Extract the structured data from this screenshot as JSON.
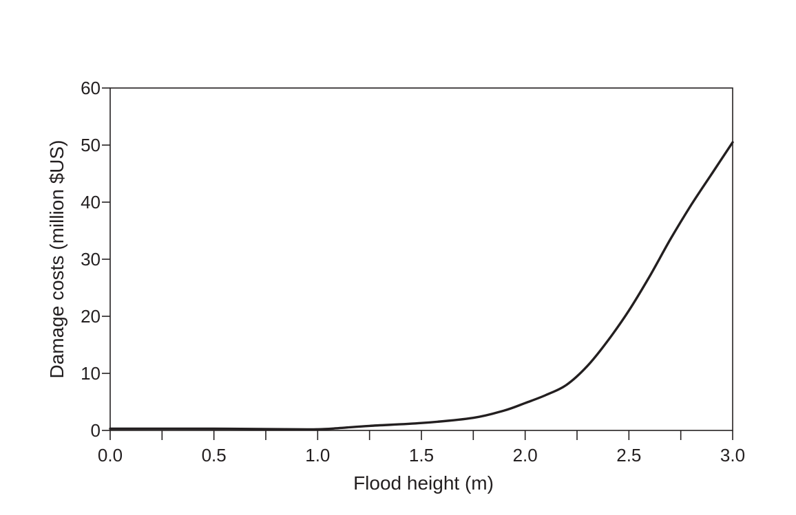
{
  "chart_data": {
    "type": "line",
    "xlabel": "Flood height (m)",
    "ylabel": "Damage costs (million $US)",
    "xlim": [
      0,
      3
    ],
    "ylim": [
      0,
      60
    ],
    "x_ticks": [
      0,
      0.25,
      0.5,
      0.75,
      1,
      1.25,
      1.5,
      1.75,
      2,
      2.25,
      2.5,
      2.75,
      3
    ],
    "x_tick_labels": [
      "0.0",
      "",
      "0.5",
      "",
      "1.0",
      "",
      "1.5",
      "",
      "2.0",
      "",
      "2.5",
      "",
      "3.0"
    ],
    "y_ticks": [
      0,
      10,
      20,
      30,
      40,
      50,
      60
    ],
    "y_tick_labels": [
      "0",
      "10",
      "20",
      "30",
      "40",
      "50",
      "60"
    ],
    "grid": false,
    "legend": "none",
    "line_color": "#231f20",
    "series": [
      {
        "x": [
          0,
          0.5,
          0.9,
          1.0,
          1.1,
          1.25,
          1.5,
          1.75,
          1.9,
          2.0,
          2.1,
          2.2,
          2.3,
          2.4,
          2.5,
          2.6,
          2.7,
          2.8,
          2.9,
          3.0
        ],
        "values": [
          0.3,
          0.3,
          0.2,
          0.2,
          0.4,
          0.8,
          1.3,
          2.2,
          3.5,
          4.8,
          6.2,
          8.0,
          11.3,
          15.8,
          21.0,
          27.0,
          33.5,
          39.5,
          45.0,
          50.5
        ]
      }
    ]
  }
}
